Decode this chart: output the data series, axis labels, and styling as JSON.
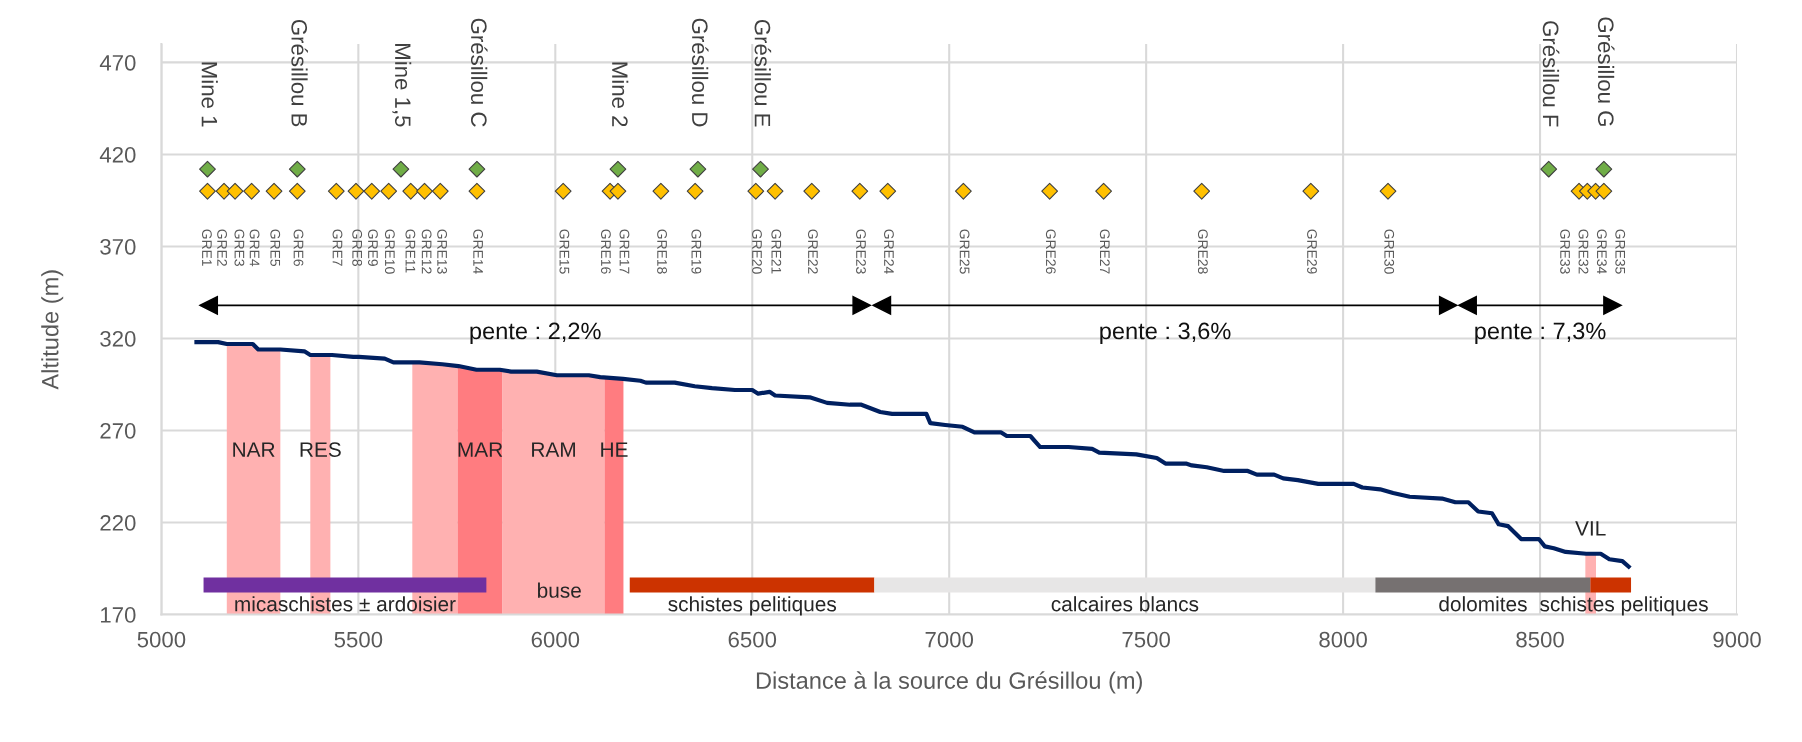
{
  "chart_data": {
    "type": "line",
    "xlabel": "Distance à la source du Grésillou (m)",
    "ylabel": "Altitude (m)",
    "xlim": [
      5000,
      9000
    ],
    "xticks": [
      5000,
      5500,
      6000,
      6500,
      7000,
      7500,
      8000,
      8500,
      9000
    ],
    "ylim": [
      170,
      480
    ],
    "yticks": [
      170,
      220,
      270,
      320,
      370,
      420,
      470
    ],
    "grid": true,
    "bands": [
      {
        "axis": "x",
        "from": 5166,
        "to": 5302,
        "label": "NAR",
        "color": "#ffb1b1"
      },
      {
        "axis": "x",
        "from": 5378,
        "to": 5429,
        "label": "RES",
        "color": "#ffb1b1"
      },
      {
        "axis": "x",
        "from": 5637,
        "to": 5752,
        "color": "#ffb1b1"
      },
      {
        "axis": "x",
        "from": 5752,
        "to": 5866,
        "label": "MAR",
        "color": "#ff7c80"
      },
      {
        "axis": "x",
        "from": 5866,
        "to": 6125,
        "label": "RAM",
        "color": "#ffb1b1"
      },
      {
        "axis": "x",
        "from": 6125,
        "to": 6173,
        "label": "HE",
        "color": "#ff7c80"
      },
      {
        "axis": "x",
        "from": 8615,
        "to": 8642,
        "label": "VIL",
        "color": "#ffb1b1"
      }
    ],
    "annotations": [
      "buse",
      {
        "text": "micaschistes ± ardoisier",
        "x": 5466,
        "y": 186
      },
      {
        "text": "schistes pelitiques",
        "x": 6500,
        "y": 186
      },
      {
        "text": "calcaires blancs",
        "x": 7446,
        "y": 186
      },
      {
        "text": "dolomites",
        "x": 8355,
        "y": 186
      },
      {
        "text": "schistes pelitiques",
        "x": 8680,
        "y": 186
      }
    ],
    "series": [
      {
        "color": "#002060",
        "x": [
          5089,
          5144,
          5166,
          5232,
          5246,
          5302,
          5363,
          5378,
          5433,
          5487,
          5501,
          5567,
          5589,
          5655,
          5713,
          5754,
          5800,
          5859,
          5888,
          5953,
          6004,
          6085,
          6114,
          6172,
          6216,
          6230,
          6303,
          6354,
          6398,
          6456,
          6500,
          6515,
          6544,
          6558,
          6646,
          6690,
          6748,
          6777,
          6825,
          6855,
          6942,
          6952,
          6990,
          7034,
          7064,
          7131,
          7146,
          7206,
          7231,
          7303,
          7363,
          7381,
          7475,
          7527,
          7549,
          7601,
          7616,
          7654,
          7698,
          7758,
          7781,
          7825,
          7848,
          7885,
          7937,
          8027,
          8049,
          8094,
          8127,
          8169,
          8251,
          8285,
          8318,
          8343,
          8378,
          8395,
          8419,
          8452,
          8497,
          8512,
          8535,
          8565,
          8617,
          8654,
          8676,
          8709,
          8725
        ],
        "values": [
          318,
          318,
          317,
          317,
          314,
          314,
          313,
          311,
          311,
          310,
          310,
          309,
          307,
          307,
          306,
          305,
          303,
          303,
          302,
          302,
          300,
          300,
          299,
          298,
          297,
          296,
          296,
          294,
          293,
          292,
          292,
          290,
          291,
          289,
          288,
          285,
          284,
          284,
          280,
          279,
          279,
          274,
          273,
          272,
          269,
          269,
          267,
          267,
          261,
          261,
          260,
          258,
          257,
          255,
          252,
          252,
          251,
          250,
          248,
          248,
          246,
          246,
          244,
          243,
          241,
          241,
          239,
          238,
          236,
          234,
          233,
          231,
          231,
          226,
          225,
          219,
          218,
          211,
          211,
          207,
          206,
          204,
          203,
          203,
          200,
          199,
          196
        ]
      },
      {
        "type": "line",
        "name": "pente : 2,2%",
        "color": "#000000",
        "marker": "triangle",
        "x": [
          5120,
          6778
        ],
        "values": [
          338,
          338
        ]
      },
      {
        "type": "line",
        "name": "pente : 3,6%",
        "color": "#000000",
        "marker": "triangle",
        "x": [
          6829,
          8267
        ],
        "values": [
          338,
          338
        ]
      },
      {
        "type": "line",
        "name": "pente : 7,3%",
        "color": "#000000",
        "marker": "triangle",
        "x": [
          8316,
          8684
        ],
        "values": [
          338,
          338
        ]
      },
      {
        "type": "line",
        "color": "#7030a0",
        "x": [
          5107,
          5825
        ],
        "values": [
          186,
          186
        ]
      },
      {
        "type": "line",
        "color": "#cc3300",
        "x": [
          6189,
          6810
        ],
        "values": [
          186,
          186
        ]
      },
      {
        "type": "line",
        "color": "#e7e6e6",
        "x": [
          6810,
          8082
        ],
        "values": [
          186,
          186
        ]
      },
      {
        "type": "line",
        "color": "#767171",
        "x": [
          8082,
          8628
        ],
        "values": [
          186,
          186
        ]
      },
      {
        "type": "line",
        "color": "#cc3300",
        "x": [
          8628,
          8731
        ],
        "values": [
          186,
          186
        ]
      },
      {
        "type": "scatter",
        "color": "#ffc000",
        "marker": "diamond",
        "x": [
          5117,
          5159,
          5187,
          5229,
          5286,
          5345,
          5444,
          5494,
          5534,
          5577,
          5633,
          5668,
          5708,
          5801,
          6020,
          6139,
          6159,
          6268,
          6355,
          6509,
          6558,
          6651,
          6773,
          6844,
          7036,
          7255,
          7392,
          7641,
          7918,
          8114,
          8599,
          8620,
          8641,
          8662
        ],
        "values": [
          400,
          400,
          400,
          400,
          400,
          400,
          400,
          400,
          400,
          400,
          400,
          400,
          400,
          400,
          400,
          400,
          400,
          400,
          400,
          400,
          400,
          400,
          400,
          400,
          400,
          400,
          400,
          400,
          400,
          400,
          400,
          400,
          400,
          400
        ],
        "value_labels": [
          "GRE1",
          "GRE2",
          "GRE3",
          "GRE4",
          "GRE5",
          "GRE6",
          "GRE7",
          "GRE8",
          "GRE9",
          "GRE10",
          "GRE11",
          "GRE12",
          "GRE13",
          "GRE14",
          "GRE15",
          "GRE16",
          "GRE17",
          "GRE18",
          "GRE19",
          "GRE20",
          "GRE21",
          "GRE22",
          "GRE23",
          "GRE24",
          "GRE25",
          "GRE26",
          "GRE27",
          "GRE28",
          "GRE29",
          "GRE30",
          "GRE33",
          "GRE32",
          "GRE34",
          "GRE35"
        ]
      },
      {
        "type": "scatter",
        "color": "#70ad47",
        "marker": "diamond",
        "x": [
          5117,
          5345,
          5608,
          5801,
          6159,
          6362,
          6521,
          8522,
          8662
        ],
        "values": [
          412,
          412,
          412,
          412,
          412,
          412,
          412,
          412,
          412
        ],
        "value_labels": [
          "Mine 1",
          "Grésillou B",
          "Mine 1,5",
          "Grésillou C",
          "Mine 2",
          "Grésillou D",
          "Grésillou E",
          "Grésillou F",
          "Grésillou G"
        ]
      }
    ]
  }
}
